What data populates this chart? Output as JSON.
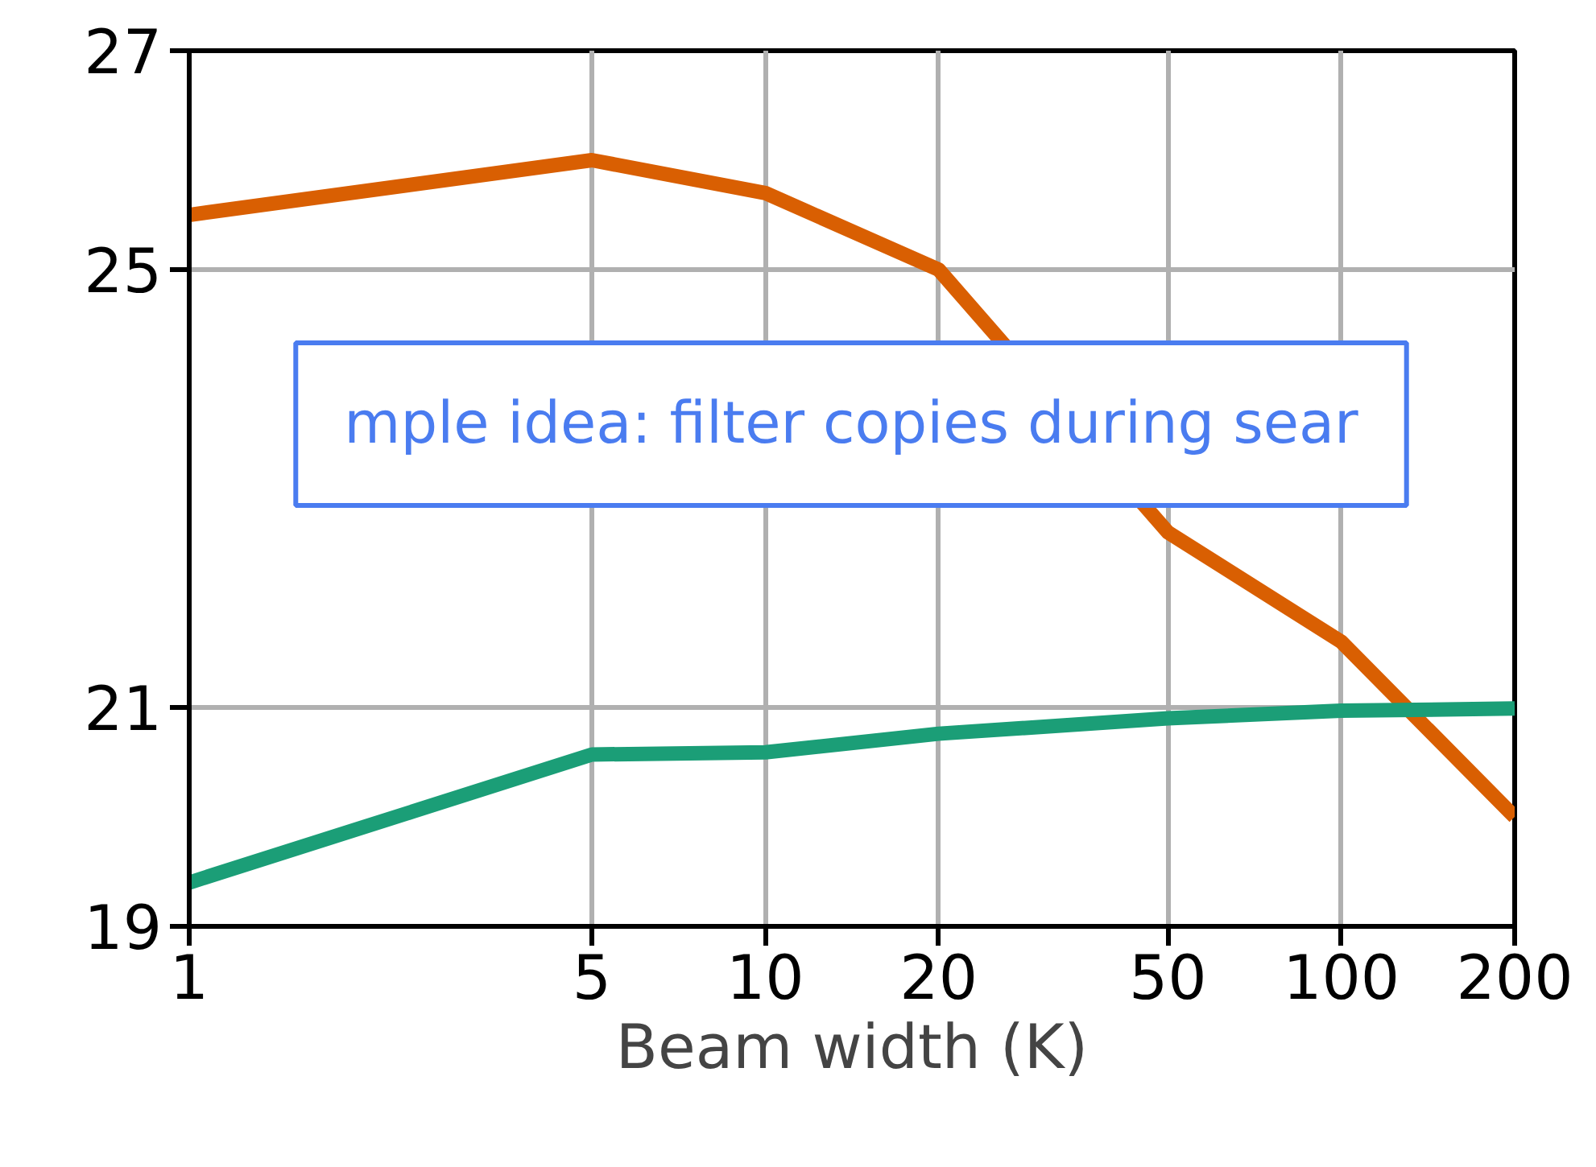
{
  "chart_data": {
    "type": "line",
    "xlabel": "Beam width (K)",
    "log": "x",
    "x": [
      1,
      5,
      10,
      20,
      50,
      100,
      200
    ],
    "xlim": [
      1,
      200
    ],
    "xticks": [
      1,
      5,
      10,
      20,
      50,
      100,
      200
    ],
    "ylim": [
      19,
      27
    ],
    "yticks": [
      19,
      21,
      25,
      27
    ],
    "grid": true,
    "series": [
      {
        "color": "#d95f02",
        "values": [
          25.5,
          26.0,
          25.7,
          25.0,
          22.6,
          21.6,
          20.0
        ]
      },
      {
        "color": "#1b9e77",
        "values": [
          19.4,
          20.57,
          20.59,
          20.76,
          20.9,
          20.97,
          20.99
        ]
      }
    ],
    "annotations": [
      "mple idea: filter copies during sear"
    ]
  }
}
